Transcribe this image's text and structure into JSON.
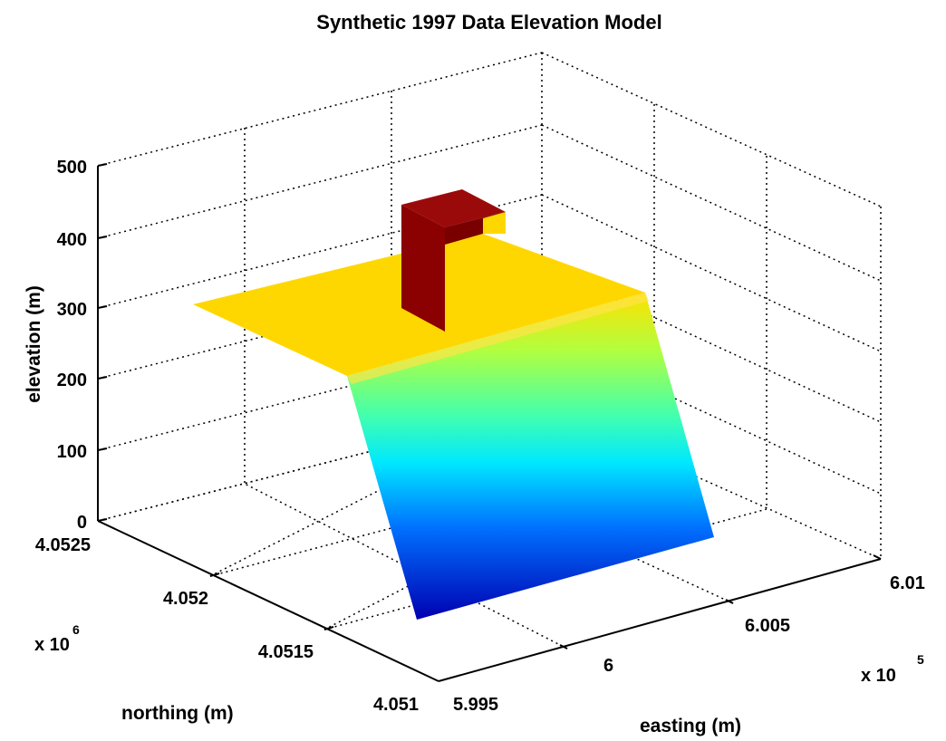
{
  "chart_data": {
    "type": "surface",
    "title": "Synthetic 1997 Data Elevation Model",
    "xlabel": "easting (m)",
    "ylabel": "northing (m)",
    "zlabel": "elevation (m)",
    "x_multiplier": "x 10",
    "x_exponent": "5",
    "y_multiplier": "x 10",
    "y_exponent": "6",
    "xlim": [
      5.995,
      6.01
    ],
    "ylim": [
      4.051,
      4.0525
    ],
    "zlim": [
      0,
      500
    ],
    "x_ticks": [
      "5.995",
      "6",
      "6.005",
      "6.01"
    ],
    "y_ticks": [
      "4.051",
      "4.0515",
      "4.052",
      "4.0525"
    ],
    "z_ticks": [
      "0",
      "100",
      "200",
      "300",
      "400",
      "500"
    ],
    "grid": true,
    "colormap": "jet",
    "plateau_color": "#FFD700",
    "block_color": "#8B0000",
    "surface": {
      "plateau_elevation": 300,
      "slope_bottom_elevation": 0,
      "block_top_elevation": 450
    }
  }
}
